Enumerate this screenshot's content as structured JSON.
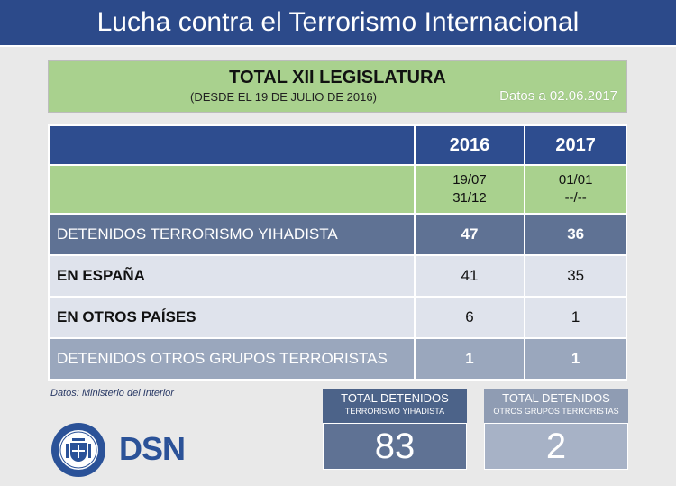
{
  "header": {
    "title": "Lucha contra el Terrorismo Internacional"
  },
  "summary": {
    "title": "TOTAL XII LEGISLATURA",
    "subtitle": "(DESDE EL 19 DE JULIO DE 2016)",
    "date_note": "Datos a 02.06.2017"
  },
  "table": {
    "years": [
      "2016",
      "2017"
    ],
    "periods": [
      {
        "line1": "19/07",
        "line2": "31/12"
      },
      {
        "line1": "01/01",
        "line2": "--/--"
      }
    ],
    "rows": [
      {
        "label": "DETENIDOS TERRORISMO YIHADISTA",
        "v2016": "47",
        "v2017": "36"
      },
      {
        "label": "EN ESPAÑA",
        "v2016": "41",
        "v2017": "35"
      },
      {
        "label": "EN OTROS PAÍSES",
        "v2016": "6",
        "v2017": "1"
      },
      {
        "label": "DETENIDOS OTROS GRUPOS TERRORISTAS",
        "v2016": "1",
        "v2017": "1"
      }
    ]
  },
  "source": "Datos: Ministerio del Interior",
  "logo_text": "DSN",
  "stats": [
    {
      "line1": "TOTAL DETENIDOS",
      "line2": "TERRORISMO YIHADISTA",
      "value": "83"
    },
    {
      "line1": "TOTAL DETENIDOS",
      "line2": "OTROS GRUPOS TERRORISTAS",
      "value": "2"
    }
  ],
  "colors": {
    "banner": "#2c4a8a",
    "green": "#a9d18e",
    "navy_row": "#2e4d8f",
    "slate_row": "#5f7294",
    "light_row": "#dfe3ec",
    "gray_row": "#9aa7bd",
    "dsn_blue": "#2b5298"
  }
}
